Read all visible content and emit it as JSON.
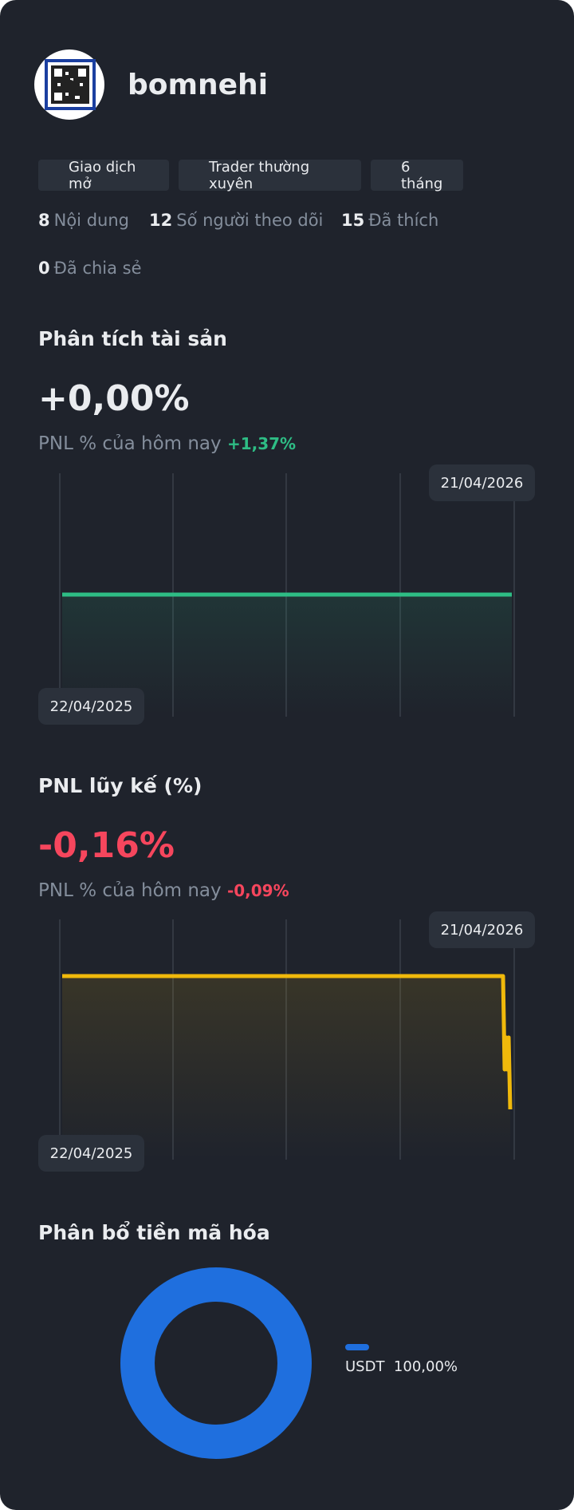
{
  "header": {
    "username": "bomnehi"
  },
  "badges": [
    "Giao dịch mở",
    "Trader thường xuyên",
    "6 tháng"
  ],
  "stats": [
    {
      "value": 8,
      "label": "Nội dung"
    },
    {
      "value": 12,
      "label": "Số người theo dõi"
    },
    {
      "value": 15,
      "label": "Đã thích"
    },
    {
      "value": 0,
      "label": "Đã chia sẻ"
    }
  ],
  "asset_analysis": {
    "title": "Phân tích tài sản",
    "value": "+0,00%",
    "today_label": "PNL % của hôm nay",
    "today_value": "+1,37%",
    "start_date": "22/04/2025",
    "end_date": "21/04/2026"
  },
  "cumulative_pnl": {
    "title": "PNL lũy kế (%)",
    "value": "-0,16%",
    "today_label": "PNL % của hôm nay",
    "today_value": "-0,09%",
    "start_date": "22/04/2025",
    "end_date": "21/04/2026"
  },
  "allocation": {
    "title": "Phân bổ tiền mã hóa",
    "items": [
      {
        "asset": "USDT",
        "share": "100,00%"
      }
    ]
  }
}
